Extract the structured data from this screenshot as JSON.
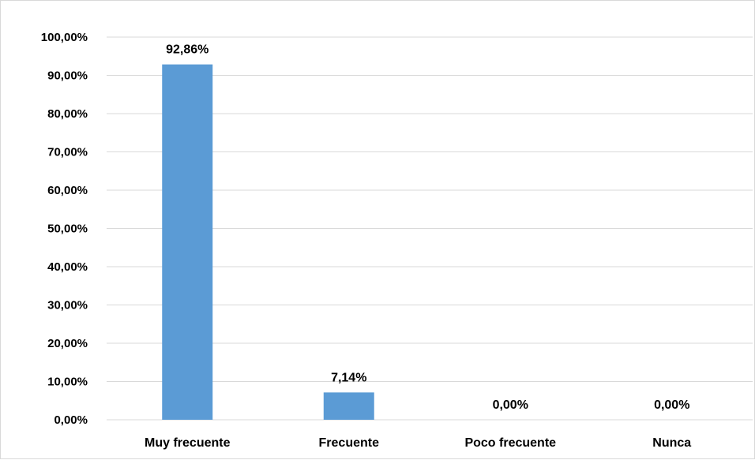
{
  "chart_data": {
    "type": "bar",
    "categories": [
      "Muy frecuente",
      "Frecuente",
      "Poco frecuente",
      "Nunca"
    ],
    "values": [
      92.86,
      7.14,
      0.0,
      0.0
    ],
    "data_labels": [
      "92,86%",
      "7,14%",
      "0,00%",
      "0,00%"
    ],
    "title": "",
    "xlabel": "",
    "ylabel": "",
    "ylim": [
      0,
      100
    ],
    "y_ticks": [
      {
        "value": 0,
        "label": "0,00%"
      },
      {
        "value": 10,
        "label": "10,00%"
      },
      {
        "value": 20,
        "label": "20,00%"
      },
      {
        "value": 30,
        "label": "30,00%"
      },
      {
        "value": 40,
        "label": "40,00%"
      },
      {
        "value": 50,
        "label": "50,00%"
      },
      {
        "value": 60,
        "label": "60,00%"
      },
      {
        "value": 70,
        "label": "70,00%"
      },
      {
        "value": 80,
        "label": "80,00%"
      },
      {
        "value": 90,
        "label": "90,00%"
      },
      {
        "value": 100,
        "label": "100,00%"
      }
    ],
    "grid": true,
    "legend": "none",
    "bar_color": "#5b9bd5",
    "grid_color": "#d9d9d9"
  }
}
